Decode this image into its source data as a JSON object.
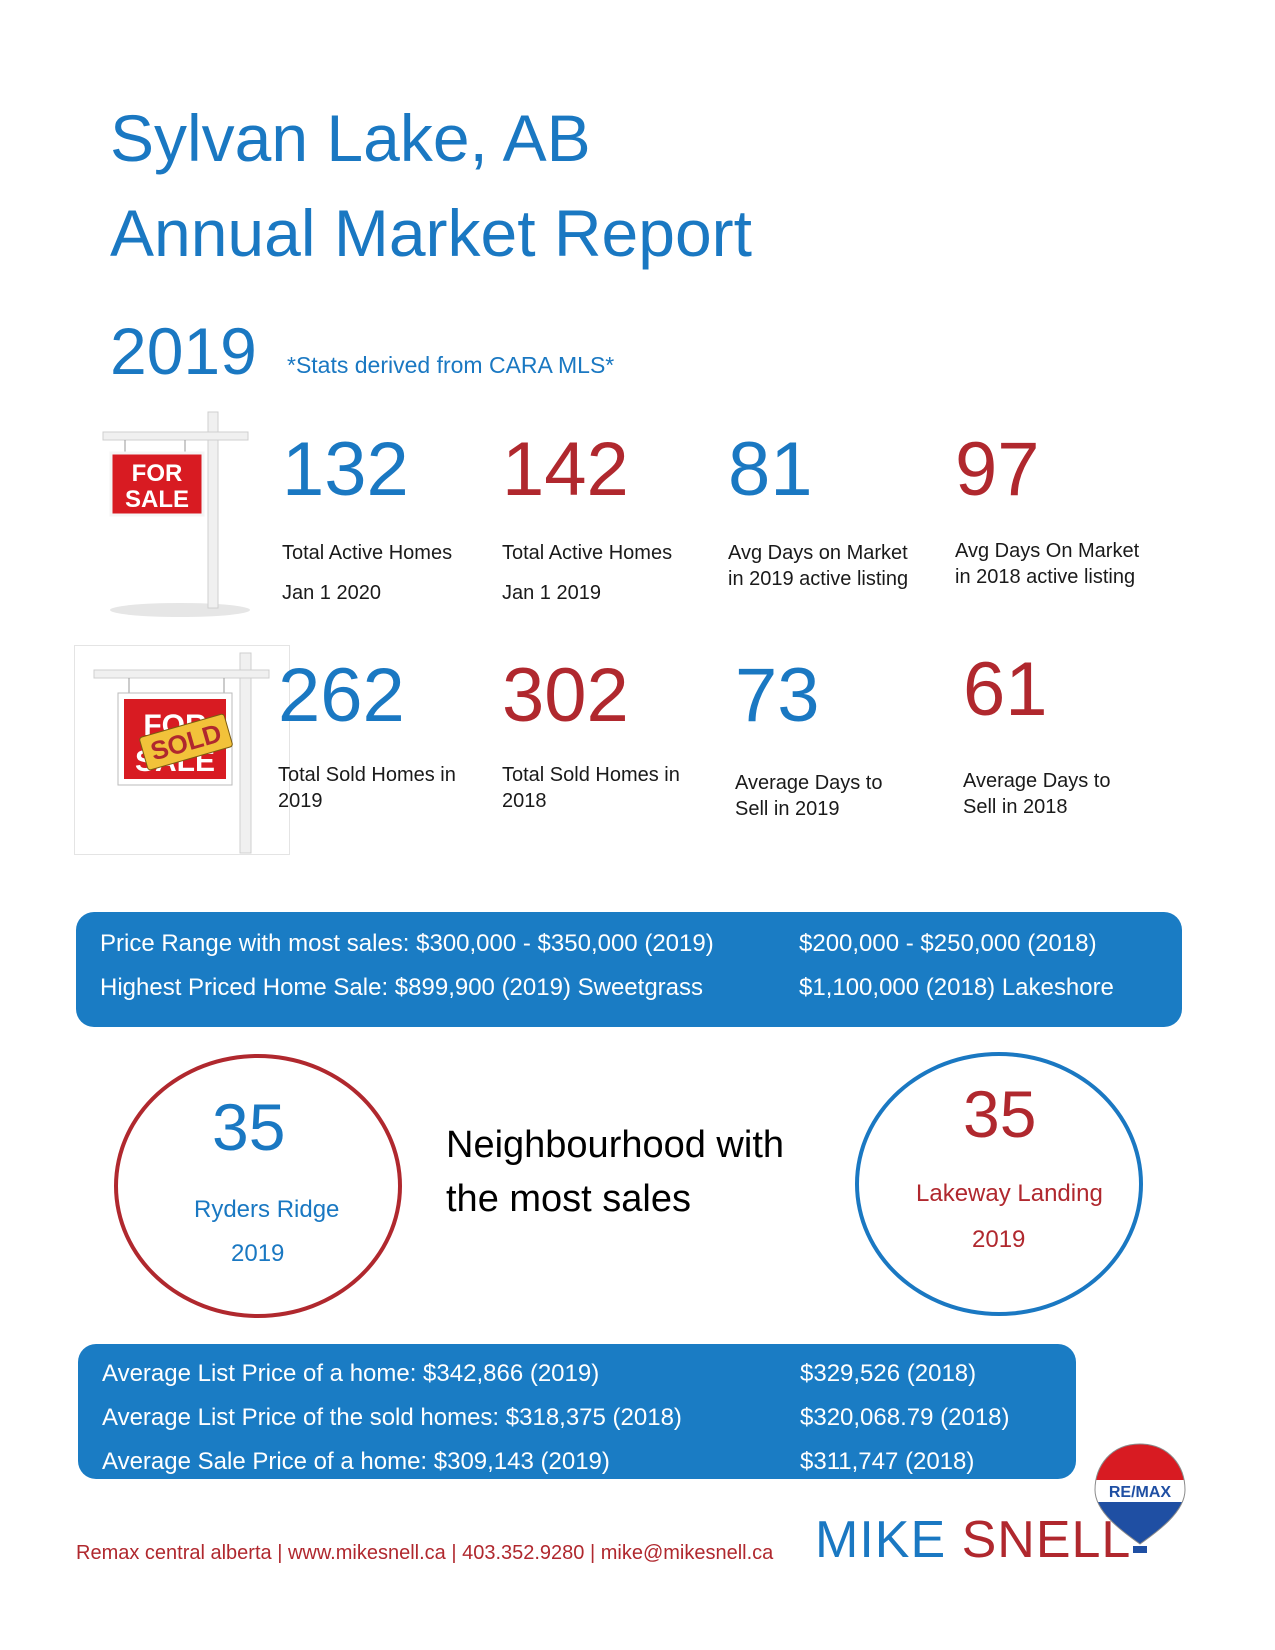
{
  "header": {
    "line1": "Sylvan Lake, AB",
    "line2": "Annual Market Report",
    "year": "2019",
    "source_note": "*Stats derived from CARA MLS*"
  },
  "for_sale_sign": {
    "text_top": "FOR",
    "text_bottom": "SALE"
  },
  "sold_sign": {
    "overlay": "SOLD",
    "background_top": "FOR",
    "background_bottom": "SALE"
  },
  "active_stats": [
    {
      "value": "132",
      "label1": "Total Active Homes",
      "label2": "Jan 1 2020"
    },
    {
      "value": "142",
      "label1": "Total Active Homes",
      "label2": "Jan 1 2019"
    },
    {
      "value": "81",
      "label1": "Avg Days on Market",
      "label2": "in 2019 active listing"
    },
    {
      "value": "97",
      "label1": "Avg Days On Market",
      "label2": "in 2018 active listing"
    }
  ],
  "sold_stats": [
    {
      "value": "262",
      "label1": "Total Sold Homes in",
      "label2": "2019"
    },
    {
      "value": "302",
      "label1": "Total Sold Homes in",
      "label2": "2018"
    },
    {
      "value": "73",
      "label1": "Average Days to",
      "label2": "Sell in 2019"
    },
    {
      "value": "61",
      "label1": "Average Days to",
      "label2": "Sell in 2018"
    }
  ],
  "price_band": {
    "row1_left": "Price Range with most sales: $300,000 - $350,000 (2019)",
    "row1_right": "$200,000 - $250,000 (2018)",
    "row2_left": "Highest Priced Home Sale: $899,900 (2019) Sweetgrass",
    "row2_right": "$1,100,000 (2018) Lakeshore"
  },
  "neighbourhood": {
    "heading_line1": "Neighbourhood with",
    "heading_line2": "the most sales",
    "left": {
      "value": "35",
      "name": "Ryders Ridge",
      "year": "2019"
    },
    "right": {
      "value": "35",
      "name": "Lakeway Landing",
      "year": "2019"
    }
  },
  "average_band": {
    "row1_left": "Average List Price of a home:   $342,866 (2019)",
    "row1_right": "$329,526 (2018)",
    "row2_left": "Average List Price of the sold homes: $318,375 (2018)",
    "row2_right": "$320,068.79 (2018)",
    "row3_left": "Average Sale Price of a home:  $309,143 (2019)",
    "row3_right": "$311,747 (2018)"
  },
  "footer": {
    "contact": "Remax central alberta | www.mikesnell.ca | 403.352.9280 | mike@mikesnell.ca",
    "brand_first": "MIKE",
    "brand_last": "SNELL",
    "logo_text": "RE/MAX"
  },
  "colors": {
    "blue": "#1a78c2",
    "red": "#b0282e",
    "band": "#1a7cc4"
  }
}
